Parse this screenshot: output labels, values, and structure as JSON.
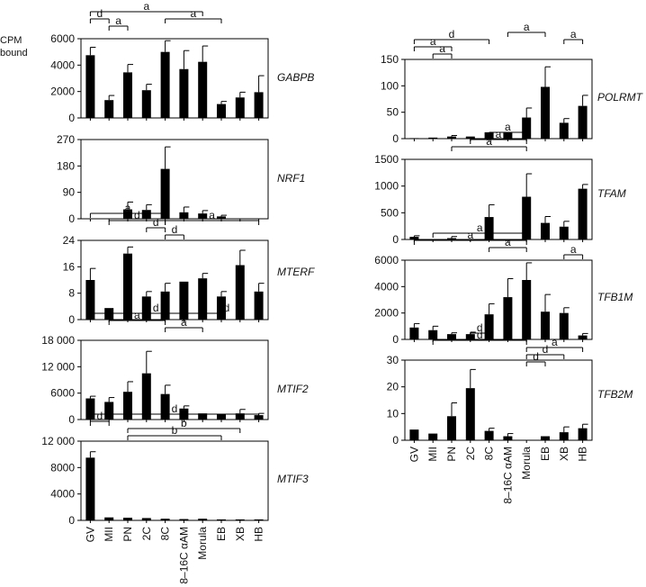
{
  "figure": {
    "y_axis_label_line1": "CPM",
    "y_axis_label_line2": "bound"
  },
  "chart_data": [
    {
      "type": "bar",
      "gene": "GABPB",
      "categories": [
        "GV",
        "MII",
        "PN",
        "2C",
        "8C",
        "8–16C αAM",
        "Morula",
        "EB",
        "XB",
        "HB"
      ],
      "values": [
        4750,
        1350,
        3450,
        2100,
        5000,
        3700,
        4250,
        1050,
        1550,
        1950
      ],
      "errors": [
        600,
        350,
        600,
        450,
        850,
        1400,
        1200,
        200,
        400,
        1250
      ],
      "ylim": [
        0,
        6000
      ],
      "yticks": [
        0,
        2000,
        4000,
        6000
      ],
      "ytick_labels": [
        "0",
        "2000",
        "4000",
        "6000"
      ],
      "annotations": [
        {
          "label": "a",
          "from": 0,
          "to": 6,
          "level": 0
        },
        {
          "label": "d",
          "from": 0,
          "to": 1,
          "level": 1
        },
        {
          "label": "a",
          "from": 4,
          "to": 7,
          "level": 1
        },
        {
          "label": "a",
          "from": 1,
          "to": 2,
          "level": 2
        }
      ]
    },
    {
      "type": "bar",
      "gene": "NRF1",
      "categories": [
        "GV",
        "MII",
        "PN",
        "2C",
        "8C",
        "8–16C αAM",
        "Morula",
        "EB",
        "XB",
        "HB"
      ],
      "values": [
        0,
        0,
        32,
        30,
        170,
        22,
        18,
        8,
        0,
        0
      ],
      "errors": [
        0,
        0,
        25,
        18,
        75,
        18,
        10,
        4,
        0,
        0
      ],
      "ylim": [
        0,
        270
      ],
      "yticks": [
        0,
        90,
        180,
        270
      ],
      "ytick_labels": [
        "0",
        "90",
        "180",
        "270"
      ],
      "annotations": []
    },
    {
      "type": "bar",
      "gene": "MTERF",
      "categories": [
        "GV",
        "MII",
        "PN",
        "2C",
        "8C",
        "8–16C αAM",
        "Morula",
        "EB",
        "XB",
        "HB"
      ],
      "values": [
        12,
        3.5,
        20,
        7,
        8.5,
        11.5,
        12.5,
        7,
        16.5,
        8.5
      ],
      "errors": [
        3.5,
        0,
        2,
        1.5,
        2.5,
        0,
        1.5,
        1.5,
        4.5,
        2.5
      ],
      "ylim": [
        0,
        24
      ],
      "yticks": [
        0,
        8,
        16,
        24
      ],
      "ytick_labels": [
        "0",
        "8",
        "16",
        "24"
      ],
      "annotations": [
        {
          "label": "a",
          "from": 0,
          "to": 4,
          "level": 0
        },
        {
          "label": "d",
          "from": 1,
          "to": 4,
          "level": 1
        },
        {
          "label": "a",
          "from": 4,
          "to": 9,
          "level": 1
        },
        {
          "label": "d",
          "from": 3,
          "to": 4,
          "level": 2
        },
        {
          "label": "d",
          "from": 4,
          "to": 5,
          "level": 3
        }
      ]
    },
    {
      "type": "bar",
      "gene": "MTIF2",
      "categories": [
        "GV",
        "MII",
        "PN",
        "2C",
        "8C",
        "8–16C αAM",
        "Morula",
        "EB",
        "XB",
        "HB"
      ],
      "values": [
        4800,
        4000,
        6300,
        10500,
        5800,
        2500,
        1400,
        1200,
        1400,
        1000
      ],
      "errors": [
        500,
        1000,
        2300,
        5000,
        2000,
        600,
        0,
        0,
        900,
        400
      ],
      "ylim": [
        0,
        18000
      ],
      "yticks": [
        0,
        6000,
        12000,
        18000
      ],
      "ytick_labels": [
        "0",
        "6000",
        "12 000",
        "18 000"
      ],
      "annotations": [
        {
          "label": "d",
          "from": 0,
          "to": 7,
          "level": 0
        },
        {
          "label": "d",
          "from": 7,
          "to": 7,
          "level": 0
        },
        {
          "label": "a",
          "from": 1,
          "to": 4,
          "level": 1
        },
        {
          "label": "a",
          "from": 4,
          "to": 6,
          "level": 2
        }
      ]
    },
    {
      "type": "bar",
      "gene": "MTIF3",
      "categories": [
        "GV",
        "MII",
        "PN",
        "2C",
        "8C",
        "8–16C αAM",
        "Morula",
        "EB",
        "XB",
        "HB"
      ],
      "values": [
        9500,
        450,
        400,
        350,
        250,
        200,
        250,
        150,
        150,
        150
      ],
      "errors": [
        900,
        0,
        0,
        0,
        0,
        0,
        0,
        0,
        0,
        0
      ],
      "ylim": [
        0,
        12000
      ],
      "yticks": [
        0,
        4000,
        8000,
        12000
      ],
      "ytick_labels": [
        "0",
        "4000",
        "8000",
        "12 000"
      ],
      "annotations": [
        {
          "label": "d",
          "from": 0,
          "to": 9,
          "level": 0
        },
        {
          "label": "d",
          "from": 0,
          "to": 1,
          "level": 1
        },
        {
          "label": "b",
          "from": 2,
          "to": 8,
          "level": 2
        },
        {
          "label": "b",
          "from": 2,
          "to": 7,
          "level": 3
        }
      ]
    },
    {
      "type": "bar",
      "gene": "POLRMT",
      "categories": [
        "GV",
        "MII",
        "PN",
        "2C",
        "8C",
        "8–16C αAM",
        "Morula",
        "EB",
        "XB",
        "HB"
      ],
      "values": [
        1,
        2,
        4,
        4,
        12,
        11,
        40,
        98,
        30,
        62
      ],
      "errors": [
        0,
        0,
        2,
        0,
        0,
        0,
        18,
        38,
        8,
        20
      ],
      "ylim": [
        0,
        150
      ],
      "yticks": [
        0,
        50,
        100,
        150
      ],
      "ytick_labels": [
        "0",
        "50",
        "100",
        "150"
      ],
      "annotations": [
        {
          "label": "a",
          "from": 5,
          "to": 7,
          "level": 0
        },
        {
          "label": "a",
          "from": 8,
          "to": 9,
          "level": 1
        },
        {
          "label": "d",
          "from": 0,
          "to": 4,
          "level": 1
        },
        {
          "label": "a",
          "from": 0,
          "to": 2,
          "level": 2
        },
        {
          "label": "a",
          "from": 1,
          "to": 2,
          "level": 3
        }
      ]
    },
    {
      "type": "bar",
      "gene": "TFAM",
      "categories": [
        "GV",
        "MII",
        "PN",
        "2C",
        "8C",
        "8–16C αAM",
        "Morula",
        "EB",
        "XB",
        "HB"
      ],
      "values": [
        50,
        5,
        25,
        0,
        420,
        0,
        800,
        310,
        240,
        950
      ],
      "errors": [
        20,
        0,
        30,
        0,
        230,
        0,
        430,
        120,
        100,
        80
      ],
      "ylim": [
        0,
        1500
      ],
      "yticks": [
        0,
        500,
        1000,
        1500
      ],
      "ytick_labels": [
        "0",
        "500",
        "1000",
        "1500"
      ],
      "annotations": [
        {
          "label": "a",
          "from": 4,
          "to": 6,
          "level": 0
        },
        {
          "label": "a",
          "from": 3,
          "to": 6,
          "level": 1
        },
        {
          "label": "a",
          "from": 2,
          "to": 6,
          "level": 2
        }
      ]
    },
    {
      "type": "bar",
      "gene": "TFB1M",
      "categories": [
        "GV",
        "MII",
        "PN",
        "2C",
        "8C",
        "8–16C αAM",
        "Morula",
        "EB",
        "XB",
        "HB"
      ],
      "values": [
        900,
        700,
        400,
        400,
        1900,
        3200,
        4500,
        2100,
        2000,
        300
      ],
      "errors": [
        300,
        300,
        100,
        150,
        800,
        1400,
        1300,
        1300,
        400,
        150
      ],
      "ylim": [
        0,
        6000
      ],
      "yticks": [
        0,
        2000,
        4000,
        6000
      ],
      "ytick_labels": [
        "0",
        "2000",
        "4000",
        "6000"
      ],
      "annotations": [
        {
          "label": "a",
          "from": 1,
          "to": 6,
          "level": 0
        },
        {
          "label": "a",
          "from": 0,
          "to": 6,
          "level": 1
        },
        {
          "label": "a",
          "from": 4,
          "to": 6,
          "level": 2
        },
        {
          "label": "a",
          "from": 8,
          "to": 9,
          "level": 3
        }
      ]
    },
    {
      "type": "bar",
      "gene": "TFB2M",
      "categories": [
        "GV",
        "MII",
        "PN",
        "2C",
        "8C",
        "8–16C αAM",
        "Morula",
        "EB",
        "XB",
        "HB"
      ],
      "values": [
        4,
        2.5,
        9,
        19.5,
        3.5,
        1.5,
        0,
        1.5,
        3,
        4.5
      ],
      "errors": [
        0,
        0,
        5,
        7,
        1,
        1,
        0,
        0,
        2,
        1.5
      ],
      "ylim": [
        0,
        30
      ],
      "yticks": [
        0,
        10,
        20,
        30
      ],
      "ytick_labels": [
        "0",
        "10",
        "20",
        "30"
      ],
      "annotations": [
        {
          "label": "d",
          "from": 3,
          "to": 4,
          "level": 0
        },
        {
          "label": "d",
          "from": 1,
          "to": 6,
          "level": 1
        },
        {
          "label": "a",
          "from": 6,
          "to": 9,
          "level": 2
        },
        {
          "label": "d",
          "from": 6,
          "to": 8,
          "level": 3
        },
        {
          "label": "d",
          "from": 6,
          "to": 7,
          "level": 4
        }
      ]
    }
  ]
}
